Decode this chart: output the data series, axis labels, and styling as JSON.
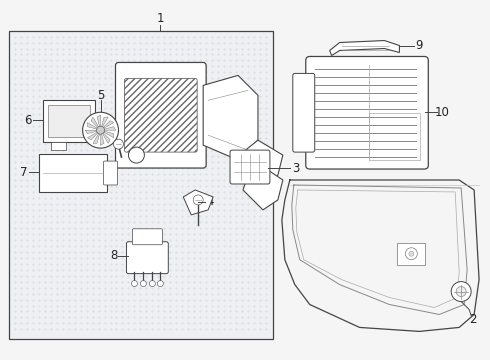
{
  "bg_color": "#f5f5f5",
  "fig_width": 4.9,
  "fig_height": 3.6,
  "dpi": 100,
  "box_color": "#f0f0f0",
  "line_color": "#444444",
  "text_color": "#222222"
}
